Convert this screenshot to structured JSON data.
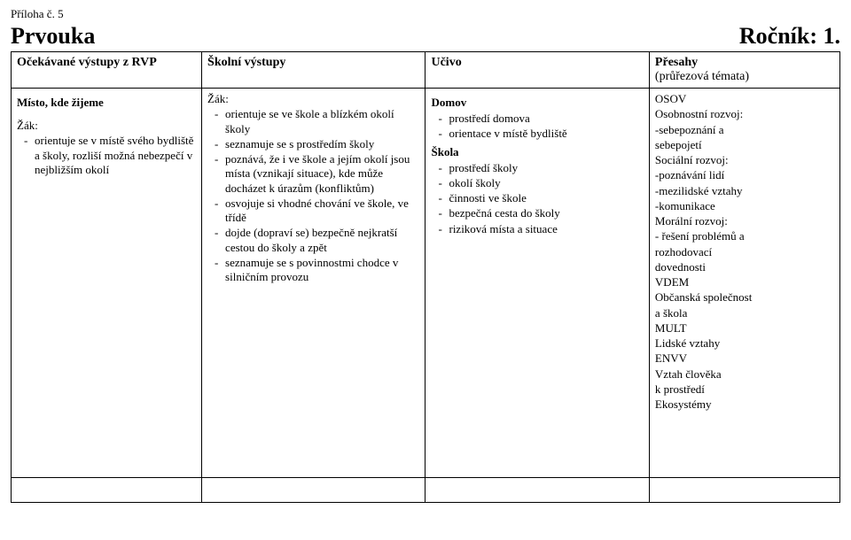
{
  "attachment": "Příloha č. 5",
  "subject": "Prvouka",
  "grade": "Ročník: 1.",
  "headers": {
    "col1": "Očekávané výstupy z RVP",
    "col2": "Školní výstupy",
    "col3": "Učivo",
    "col4_line1": "Přesahy",
    "col4_line2": "(průřezová témata)"
  },
  "col1": {
    "section": "Místo, kde žijeme",
    "lead": "Žák:",
    "items": [
      "orientuje se v místě svého bydliště a školy, rozliší možná nebezpečí v nejbližším okolí"
    ]
  },
  "col2": {
    "lead": "Žák:",
    "items": [
      "orientuje se ve škole a blízkém okolí školy",
      "seznamuje se s prostředím školy",
      "poznává, že i ve škole a jejím okolí jsou místa (vznikají situace), kde může docházet k úrazům (konfliktům)",
      "osvojuje si vhodné chování ve škole, ve třídě",
      "dojde (dopraví se) bezpečně nejkratší cestou do školy a zpět",
      "seznamuje se s povinnostmi chodce v silničním provozu"
    ]
  },
  "col3": {
    "group1_head": "Domov",
    "group1_items": [
      "prostředí domova",
      "orientace v místě bydliště"
    ],
    "group2_head": "Škola",
    "group2_items": [
      "prostředí školy",
      "okolí školy",
      "činnosti ve škole",
      "bezpečná cesta do školy",
      "riziková místa a situace"
    ]
  },
  "col4": {
    "lines": [
      "OSOV",
      "Osobnostní rozvoj:",
      "-sebepoznání a",
      "sebepojetí",
      "Sociální rozvoj:",
      "-poznávání lidí",
      "-mezilidské vztahy",
      "-komunikace",
      "Morální rozvoj:",
      "- řešení problémů a",
      "rozhodovací",
      "dovednosti",
      "VDEM",
      "Občanská společnost",
      "a škola",
      "MULT",
      "Lidské vztahy",
      "ENVV",
      "Vztah člověka",
      "k prostředí",
      "Ekosystémy"
    ]
  }
}
